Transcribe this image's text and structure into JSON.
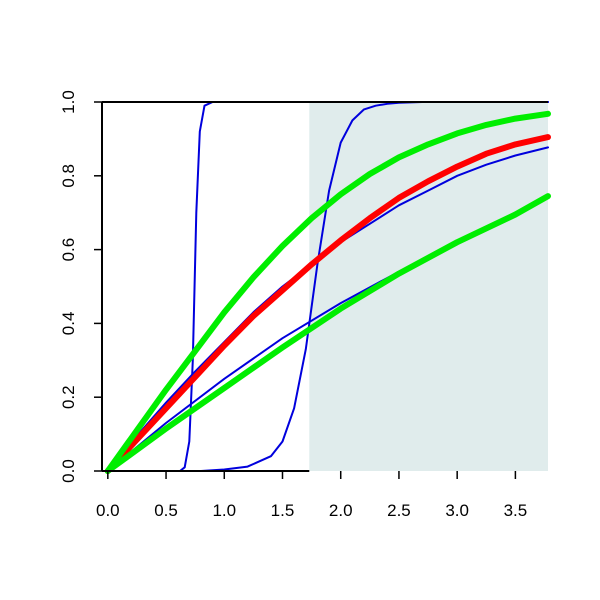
{
  "chart_data": {
    "type": "line",
    "title": "",
    "xlabel": "",
    "ylabel": "",
    "xlim": [
      -0.05,
      3.78
    ],
    "ylim": [
      0,
      1
    ],
    "grid": false,
    "legend": "none",
    "x_ticks": [
      {
        "value": 0.0,
        "label": "0.0"
      },
      {
        "value": 0.5,
        "label": "0.5"
      },
      {
        "value": 1.0,
        "label": "1.0"
      },
      {
        "value": 1.5,
        "label": "1.5"
      },
      {
        "value": 2.0,
        "label": "2.0"
      },
      {
        "value": 2.5,
        "label": "2.5"
      },
      {
        "value": 3.0,
        "label": "3.0"
      },
      {
        "value": 3.5,
        "label": "3.5"
      }
    ],
    "y_ticks": [
      {
        "value": 0.0,
        "label": "0.0"
      },
      {
        "value": 0.2,
        "label": "0.2"
      },
      {
        "value": 0.4,
        "label": "0.4"
      },
      {
        "value": 0.6,
        "label": "0.6"
      },
      {
        "value": 0.8,
        "label": "0.8"
      },
      {
        "value": 1.0,
        "label": "1.0"
      }
    ],
    "shaded_region": {
      "x_start": 1.73,
      "x_end": 3.78,
      "color": "#e0ecec"
    },
    "series": [
      {
        "color": "#0000dd",
        "style": "thin",
        "x": [
          0,
          0.5,
          0.62,
          0.66,
          0.7,
          0.73,
          0.76,
          0.79,
          0.83,
          0.9,
          1.0,
          3.78
        ],
        "y": [
          0,
          0,
          0,
          0.01,
          0.08,
          0.3,
          0.7,
          0.92,
          0.99,
          1.0,
          1.0,
          1.0
        ]
      },
      {
        "color": "#0000dd",
        "style": "thin",
        "x": [
          0,
          0.8,
          1.0,
          1.2,
          1.4,
          1.5,
          1.6,
          1.7,
          1.8,
          1.9,
          2.0,
          2.1,
          2.2,
          2.3,
          2.4,
          2.5,
          2.7,
          3.0,
          3.78
        ],
        "y": [
          0,
          0,
          0.004,
          0.012,
          0.04,
          0.08,
          0.17,
          0.33,
          0.56,
          0.76,
          0.89,
          0.95,
          0.98,
          0.99,
          0.995,
          0.998,
          1.0,
          1.0,
          1.0
        ]
      },
      {
        "color": "#0000dd",
        "style": "thin",
        "x": [
          0,
          0.25,
          0.5,
          0.75,
          1.0,
          1.25,
          1.5,
          1.75,
          2.0,
          2.25,
          2.5,
          2.75,
          3.0,
          3.25,
          3.5,
          3.78
        ],
        "y": [
          0,
          0.095,
          0.185,
          0.27,
          0.35,
          0.43,
          0.5,
          0.56,
          0.62,
          0.67,
          0.72,
          0.76,
          0.8,
          0.83,
          0.855,
          0.877
        ]
      },
      {
        "color": "#0000dd",
        "style": "thin",
        "x": [
          0,
          0.5,
          1.0,
          1.5,
          2.0,
          2.5,
          3.0,
          3.5,
          3.78
        ],
        "y": [
          0,
          0.13,
          0.25,
          0.36,
          0.455,
          0.54,
          0.615,
          0.69,
          0.74
        ]
      },
      {
        "color": "#ff0000",
        "style": "thick",
        "x": [
          0,
          0.25,
          0.5,
          0.75,
          1.0,
          1.25,
          1.5,
          1.75,
          2.0,
          2.25,
          2.5,
          2.75,
          3.0,
          3.25,
          3.5,
          3.78
        ],
        "y": [
          0,
          0.085,
          0.17,
          0.255,
          0.34,
          0.42,
          0.49,
          0.56,
          0.625,
          0.685,
          0.74,
          0.785,
          0.825,
          0.86,
          0.885,
          0.905
        ]
      },
      {
        "color": "#00ee00",
        "style": "thick",
        "x": [
          0,
          0.25,
          0.5,
          0.75,
          1.0,
          1.25,
          1.5,
          1.75,
          2.0,
          2.25,
          2.5,
          2.75,
          3.0,
          3.25,
          3.5,
          3.78
        ],
        "y": [
          0,
          0.11,
          0.22,
          0.325,
          0.43,
          0.525,
          0.61,
          0.685,
          0.75,
          0.805,
          0.85,
          0.885,
          0.915,
          0.938,
          0.955,
          0.968
        ]
      },
      {
        "color": "#00ee00",
        "style": "thick",
        "x": [
          0,
          0.5,
          1.0,
          1.5,
          2.0,
          2.5,
          3.0,
          3.5,
          3.78
        ],
        "y": [
          0,
          0.115,
          0.225,
          0.335,
          0.44,
          0.535,
          0.62,
          0.695,
          0.745
        ]
      }
    ]
  }
}
